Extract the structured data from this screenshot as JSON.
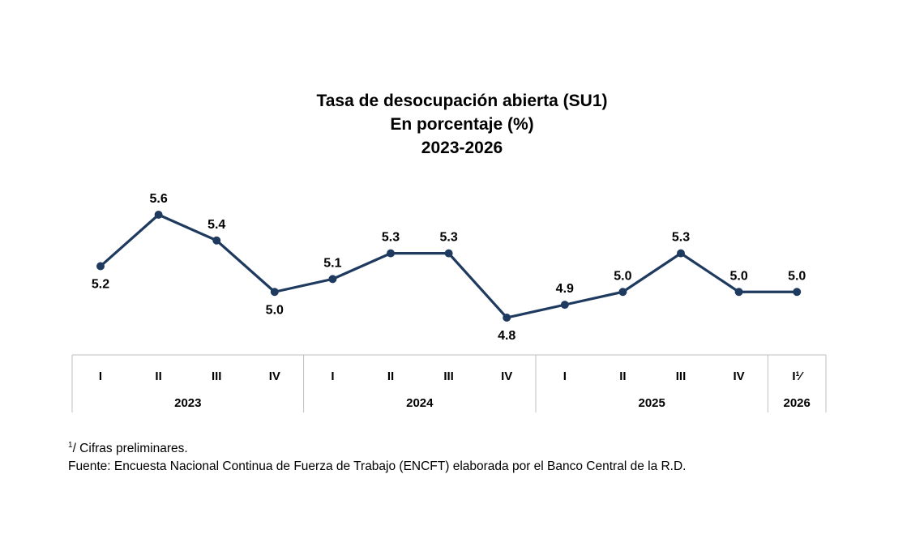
{
  "chart_data": {
    "type": "line",
    "title": "Tasa de desocupación abierta (SU1)",
    "subtitle": "En porcentaje (%)",
    "period": "2023-2026",
    "x": [
      "I",
      "II",
      "III",
      "IV",
      "I",
      "II",
      "III",
      "IV",
      "I",
      "II",
      "III",
      "IV",
      "I¹⁄"
    ],
    "groups": [
      {
        "label": "2023",
        "count": 4
      },
      {
        "label": "2024",
        "count": 4
      },
      {
        "label": "2025",
        "count": 4
      },
      {
        "label": "2026",
        "count": 1
      }
    ],
    "series": [
      {
        "values": [
          5.2,
          5.6,
          5.4,
          5.0,
          5.1,
          5.3,
          5.3,
          4.8,
          4.9,
          5.0,
          5.3,
          5.0,
          5.0
        ],
        "labels": [
          "5.2",
          "5.6",
          "5.4",
          "5.0",
          "5.1",
          "5.3",
          "5.3",
          "4.8",
          "4.9",
          "5.0",
          "5.3",
          "5.0",
          "5.0"
        ],
        "label_pos": [
          "below",
          "above",
          "above",
          "below",
          "above",
          "above",
          "above",
          "below",
          "above",
          "above",
          "above",
          "above",
          "above"
        ]
      }
    ],
    "ylim": [
      4.8,
      5.6
    ],
    "grid": false,
    "legend": "none",
    "color": "#1f3a5f"
  },
  "footnotes": {
    "marker": "1",
    "preliminary": "/ Cifras preliminares.",
    "source": "Fuente: Encuesta Nacional Continua de Fuerza de Trabajo (ENCFT) elaborada por el Banco Central de la R.D."
  }
}
